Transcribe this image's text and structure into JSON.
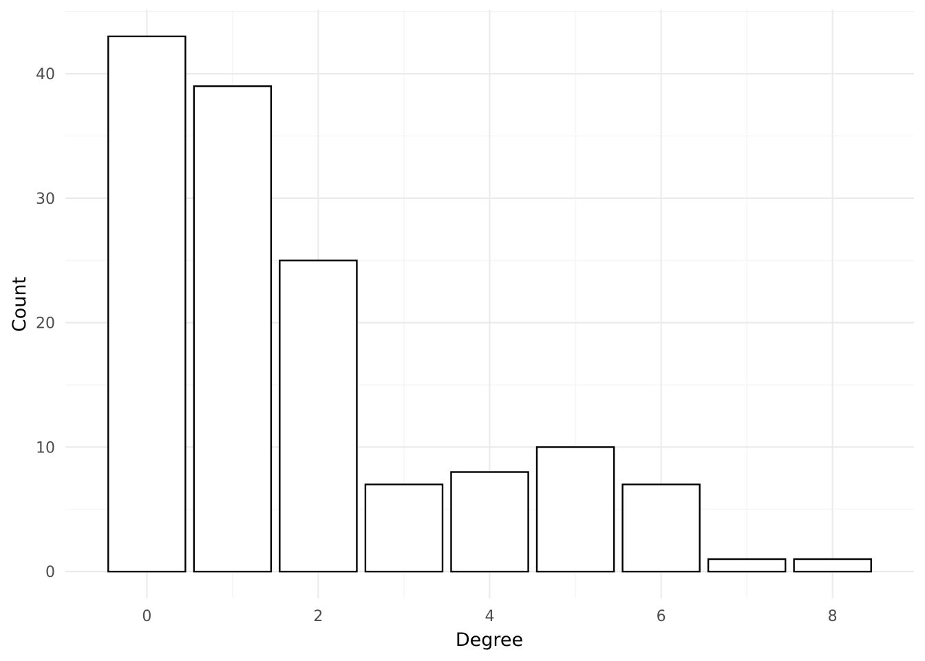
{
  "chart_data": {
    "type": "bar",
    "title": "",
    "xlabel": "Degree",
    "ylabel": "Count",
    "x": [
      0,
      1,
      2,
      3,
      4,
      5,
      6,
      7,
      8
    ],
    "values": [
      43,
      39,
      25,
      7,
      8,
      10,
      7,
      1,
      1
    ],
    "x_ticks": [
      0,
      2,
      4,
      6,
      8
    ],
    "x_tick_labels": [
      "0",
      "2",
      "4",
      "6",
      "8"
    ],
    "y_ticks": [
      0,
      10,
      20,
      30,
      40
    ],
    "y_tick_labels": [
      "0",
      "10",
      "20",
      "30",
      "40"
    ],
    "xlim": [
      -0.95,
      8.95
    ],
    "ylim": [
      -2.15,
      45.15
    ],
    "grid": true,
    "legend": "none",
    "colors": {
      "bar_fill": "#ffffff",
      "bar_outline": "#000000",
      "grid": "#ebebeb",
      "tick_text": "#4d4d4d"
    }
  }
}
